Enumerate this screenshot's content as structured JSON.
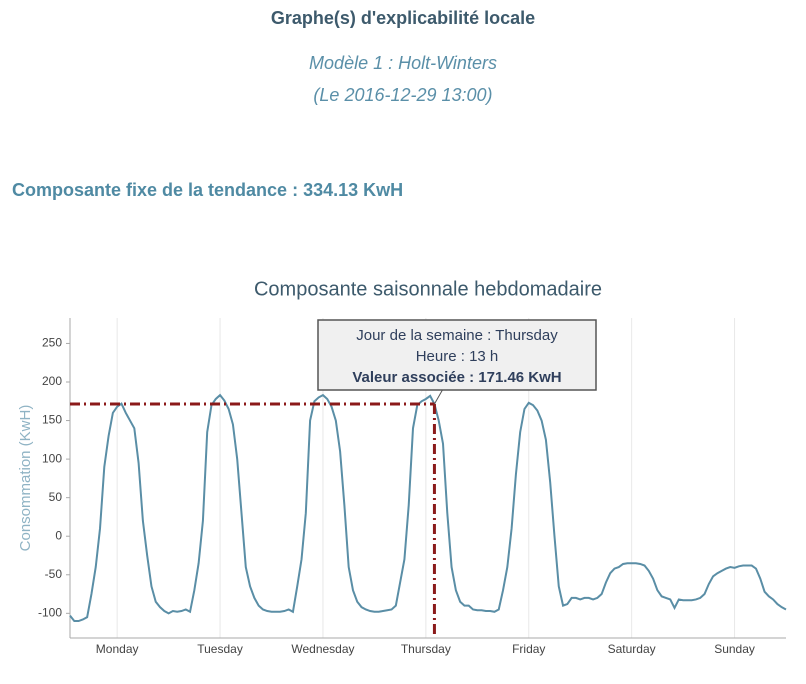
{
  "header": {
    "title": "Graphe(s) d'explicabilité locale",
    "model": "Modèle 1 : Holt-Winters",
    "date": "(Le 2016-12-29 13:00)",
    "trend": "Composante fixe de la tendance : 334.13 KwH"
  },
  "chart_data": {
    "type": "line",
    "title": "Composante saisonnale hebdomadaire",
    "y_label": "Consommation (KwH)",
    "x": [
      1,
      2,
      3,
      4,
      5,
      6,
      7,
      8,
      9,
      10,
      11,
      12,
      13,
      14,
      15,
      16,
      17,
      18,
      19,
      20,
      21,
      22,
      23,
      24,
      25,
      26,
      27,
      28,
      29,
      30,
      31,
      32,
      33,
      34,
      35,
      36,
      37,
      38,
      39,
      40,
      41,
      42,
      43,
      44,
      45,
      46,
      47,
      48,
      49,
      50,
      51,
      52,
      53,
      54,
      55,
      56,
      57,
      58,
      59,
      60,
      61,
      62,
      63,
      64,
      65,
      66,
      67,
      68,
      69,
      70,
      71,
      72,
      73,
      74,
      75,
      76,
      77,
      78,
      79,
      80,
      81,
      82,
      83,
      84,
      85,
      86,
      87,
      88,
      89,
      90,
      91,
      92,
      93,
      94,
      95,
      96,
      97,
      98,
      99,
      100,
      101,
      102,
      103,
      104,
      105,
      106,
      107,
      108,
      109,
      110,
      111,
      112,
      113,
      114,
      115,
      116,
      117,
      118,
      119,
      120,
      121,
      122,
      123,
      124,
      125,
      126,
      127,
      128,
      129,
      130,
      131,
      132,
      133,
      134,
      135,
      136,
      137,
      138,
      139,
      140,
      141,
      142,
      143,
      144,
      145,
      146,
      147,
      148,
      149,
      150,
      151,
      152,
      153,
      154,
      155,
      156,
      157,
      158,
      159,
      160,
      161,
      162,
      163,
      164,
      165,
      166,
      167,
      168
    ],
    "series": [
      {
        "name": "Composante saisonnale",
        "color": "#5a8ea6",
        "values": [
          -103,
          -110,
          -110,
          -108,
          -105,
          -75,
          -40,
          10,
          90,
          130,
          160,
          168,
          172,
          160,
          150,
          140,
          95,
          20,
          -25,
          -65,
          -85,
          -92,
          -97,
          -100,
          -97,
          -98,
          -97,
          -95,
          -98,
          -70,
          -35,
          20,
          135,
          170,
          178,
          183,
          176,
          165,
          145,
          100,
          30,
          -40,
          -65,
          -80,
          -90,
          -95,
          -97,
          -98,
          -98,
          -98,
          -97,
          -95,
          -98,
          -65,
          -30,
          30,
          150,
          175,
          180,
          183,
          178,
          168,
          150,
          110,
          40,
          -40,
          -70,
          -85,
          -92,
          -95,
          -97,
          -98,
          -98,
          -97,
          -96,
          -95,
          -90,
          -60,
          -30,
          40,
          140,
          170,
          175,
          178,
          182,
          171.46,
          150,
          120,
          30,
          -40,
          -70,
          -85,
          -90,
          -90,
          -95,
          -96,
          -96,
          -97,
          -97,
          -98,
          -95,
          -70,
          -40,
          10,
          80,
          135,
          165,
          173,
          170,
          163,
          150,
          125,
          70,
          0,
          -65,
          -90,
          -88,
          -80,
          -80,
          -82,
          -80,
          -80,
          -82,
          -80,
          -75,
          -60,
          -48,
          -42,
          -40,
          -36,
          -35,
          -35,
          -35,
          -36,
          -38,
          -45,
          -55,
          -70,
          -78,
          -80,
          -82,
          -93,
          -82,
          -83,
          -83,
          -83,
          -82,
          -80,
          -75,
          -62,
          -52,
          -48,
          -45,
          -42,
          -40,
          -41,
          -39,
          -38,
          -38,
          -38,
          -42,
          -55,
          -72,
          -78,
          -82,
          -88,
          -92,
          -95
        ]
      }
    ],
    "xlim": [
      1,
      168
    ],
    "ylim": [
      -132,
      283
    ],
    "xticks": [
      {
        "value": 12,
        "label": "Monday"
      },
      {
        "value": 36,
        "label": "Tuesday"
      },
      {
        "value": 60,
        "label": "Wednesday"
      },
      {
        "value": 84,
        "label": "Thursday"
      },
      {
        "value": 108,
        "label": "Friday"
      },
      {
        "value": 132,
        "label": "Saturday"
      },
      {
        "value": 156,
        "label": "Sunday"
      }
    ],
    "yticks": [
      -100,
      -50,
      0,
      50,
      100,
      150,
      200,
      250
    ],
    "grid": true,
    "hover": {
      "x": 86,
      "y": 171.46,
      "lines": [
        "Jour de la semaine : Thursday",
        "Heure : 13 h",
        "Valeur associée : 171.46 KwH"
      ],
      "color": "#8b1a1a"
    }
  }
}
